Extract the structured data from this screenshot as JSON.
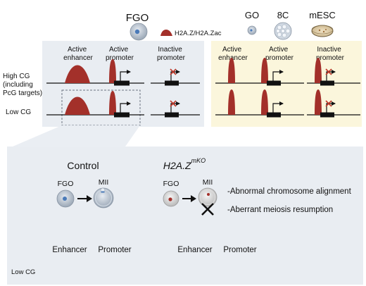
{
  "header": {
    "fgo_label": "FGO",
    "legend_label": "H2A.Z/H2A.Zac",
    "go_label": "GO",
    "eightc_label": "8C",
    "mesc_label": "mESC"
  },
  "columns": {
    "active_enhancer": [
      "Active",
      "enhancer"
    ],
    "active_promoter": [
      "Active",
      "promoter"
    ],
    "inactive_promoter": [
      "Inactive",
      "promoter"
    ]
  },
  "rows": {
    "high_cg": [
      "High CG",
      "(including",
      "PcG targets)"
    ],
    "low_cg": "Low CG"
  },
  "detail": {
    "control_title": "Control",
    "mutant_title_main": "H2A.Z",
    "mutant_title_sup": "mKO",
    "fgo_label": "FGO",
    "mii_label": "MII",
    "phenotypes": [
      "-Abnormal chromosome alignment",
      "-Aberrant meiosis resumption"
    ],
    "enhancer_label": "Enhancer",
    "promoter_label": "Promoter",
    "low_cg_label": "Low CG"
  },
  "colors": {
    "h2az_peak": "#a3302a",
    "panel_blue": "#e9edf2",
    "panel_yellow": "#fbf6dc",
    "inactive_cross": "#c0392b"
  }
}
